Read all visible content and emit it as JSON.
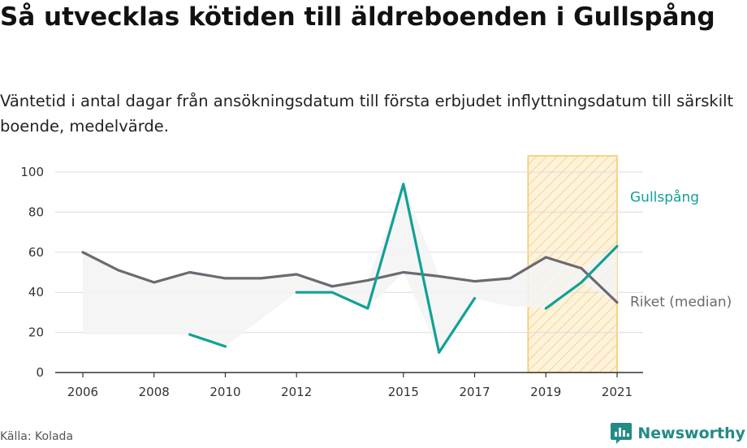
{
  "title": "Så utvecklas kötiden till äldreboenden i Gullspång",
  "subtitle": "Väntetid i antal dagar från ansökningsdatum till första erbjudet inflyttningsdatum till särskilt boende, medelvärde.",
  "source": "Källa: Kolada",
  "brand": "Newsworthy",
  "colors": {
    "gullspang": "#11a196",
    "riket": "#6b6a72",
    "highlight_stroke": "#f5c862",
    "highlight_fill": "#fdf3dc",
    "band_fill": "#f3f3f3",
    "brand": "#238b85"
  },
  "chart_data": {
    "type": "line",
    "xlim": [
      2006,
      2021
    ],
    "ylim": [
      0,
      100
    ],
    "x_ticks": [
      2006,
      2008,
      2010,
      2012,
      2015,
      2017,
      2019,
      2021
    ],
    "y_ticks": [
      0,
      20,
      40,
      60,
      80,
      100
    ],
    "grid": true,
    "highlight_range": [
      2018.5,
      2021
    ],
    "series": [
      {
        "name": "Gullspång",
        "color": "#11a196",
        "x": [
          2006,
          2007,
          2008,
          2009,
          2010,
          2011,
          2012,
          2013,
          2014,
          2015,
          2016,
          2017,
          2018,
          2019,
          2020,
          2021
        ],
        "y": [
          null,
          null,
          null,
          19,
          13,
          null,
          40,
          40,
          32,
          94,
          10,
          37,
          null,
          32,
          45,
          63
        ]
      },
      {
        "name": "Riket (median)",
        "color": "#6b6a72",
        "x": [
          2006,
          2007,
          2008,
          2009,
          2010,
          2011,
          2012,
          2013,
          2014,
          2015,
          2016,
          2017,
          2018,
          2019,
          2020,
          2021
        ],
        "y": [
          60,
          51,
          45,
          50,
          47,
          47,
          49,
          43,
          46,
          50,
          48,
          45.5,
          47,
          57.5,
          52,
          35
        ]
      }
    ],
    "band": {
      "x": [
        2006,
        2007,
        2008,
        2009,
        2010,
        2011,
        2012,
        2013,
        2014,
        2015,
        2016,
        2017,
        2018,
        2019,
        2020,
        2021
      ],
      "lower": [
        19,
        19,
        19,
        19,
        13,
        26.5,
        40,
        40,
        32,
        50,
        10,
        37,
        33,
        32,
        45,
        35
      ],
      "upper": [
        60,
        51,
        45,
        50,
        47,
        47,
        49,
        43,
        46,
        94,
        48,
        45.5,
        47,
        57.5,
        52,
        63
      ]
    }
  }
}
